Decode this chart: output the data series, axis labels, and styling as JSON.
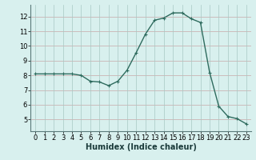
{
  "x": [
    0,
    1,
    2,
    3,
    4,
    5,
    6,
    7,
    8,
    9,
    10,
    11,
    12,
    13,
    14,
    15,
    16,
    17,
    18,
    19,
    20,
    21,
    22,
    23
  ],
  "y": [
    8.1,
    8.1,
    8.1,
    8.1,
    8.1,
    8.0,
    7.6,
    7.55,
    7.3,
    7.6,
    8.35,
    9.55,
    10.8,
    11.75,
    11.9,
    12.25,
    12.25,
    11.85,
    11.6,
    8.2,
    5.9,
    5.2,
    5.05,
    4.7
  ],
  "line_color": "#2e6b5e",
  "marker": "+",
  "marker_size": 3,
  "bg_color": "#d8f0ee",
  "hgrid_color": "#c8a8a8",
  "vgrid_color": "#a8c8c4",
  "xlabel": "Humidex (Indice chaleur)",
  "xlabel_fontsize": 7,
  "tick_fontsize": 6,
  "ylim": [
    4.2,
    12.8
  ],
  "xlim": [
    -0.5,
    23.5
  ],
  "yticks": [
    5,
    6,
    7,
    8,
    9,
    10,
    11,
    12
  ],
  "xticks": [
    0,
    1,
    2,
    3,
    4,
    5,
    6,
    7,
    8,
    9,
    10,
    11,
    12,
    13,
    14,
    15,
    16,
    17,
    18,
    19,
    20,
    21,
    22,
    23
  ]
}
